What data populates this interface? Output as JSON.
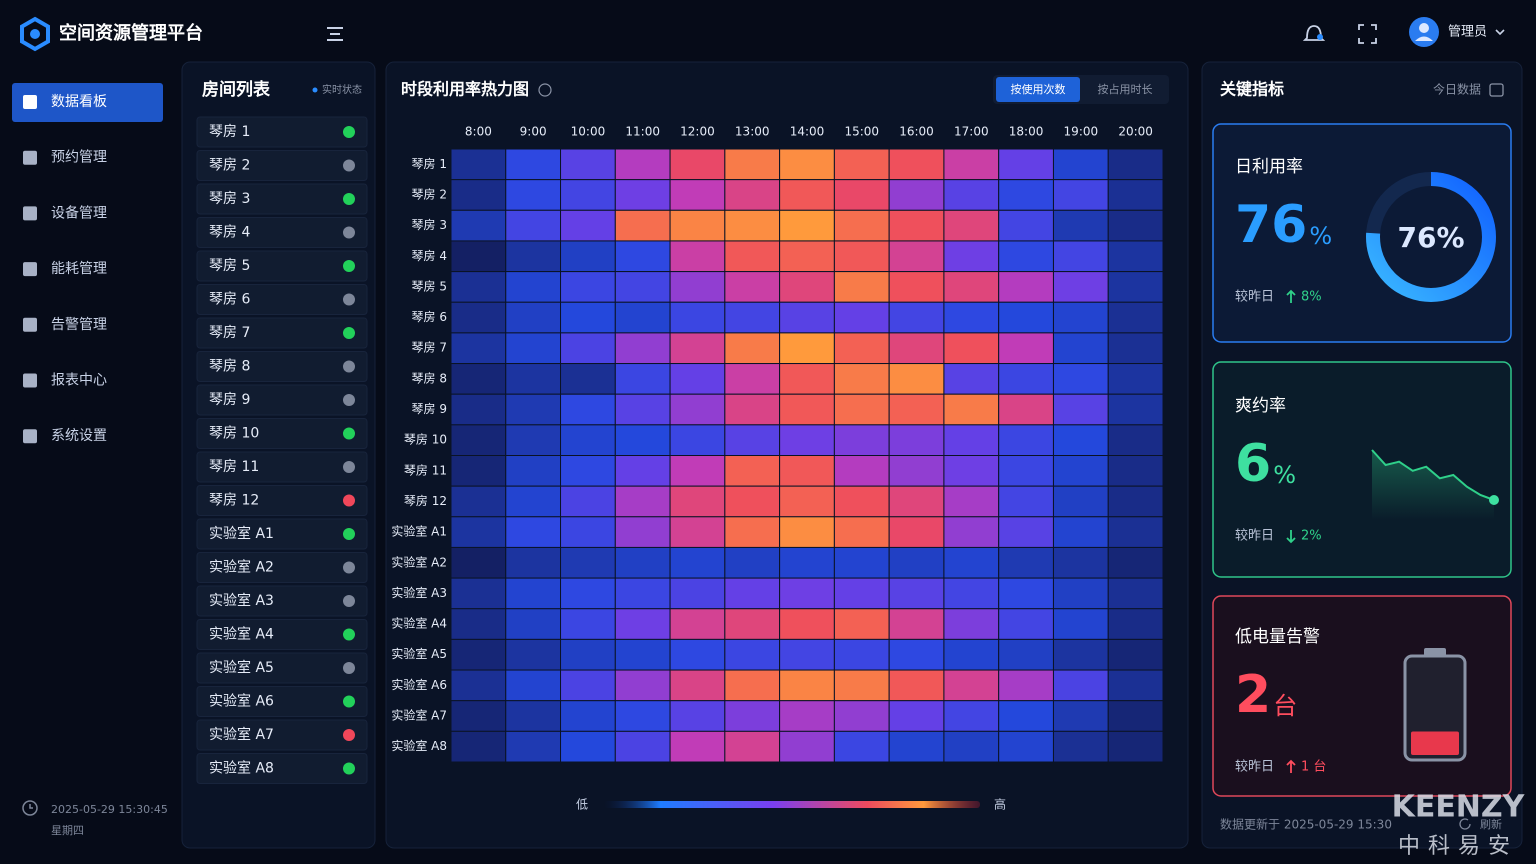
{
  "header": {
    "title": "空间资源管理平台",
    "user": "管理员"
  },
  "nav": {
    "active": 0,
    "items": [
      "数据看板",
      "预约管理",
      "设备管理",
      "能耗管理",
      "告警管理",
      "报表中心",
      "系统设置"
    ]
  },
  "sidebar_footer": {
    "datetime": "2025-05-29 15:30:45",
    "weekday": "星期四"
  },
  "room_list": {
    "title": "房间列表",
    "status_label": "实时状态",
    "status_colors": {
      "online": "#22d15a",
      "offline": "#7d8699",
      "alarm": "#f0475a"
    },
    "rooms": [
      {
        "name": "琴房 1",
        "status": "online"
      },
      {
        "name": "琴房 2",
        "status": "offline"
      },
      {
        "name": "琴房 3",
        "status": "online"
      },
      {
        "name": "琴房 4",
        "status": "offline"
      },
      {
        "name": "琴房 5",
        "status": "online"
      },
      {
        "name": "琴房 6",
        "status": "offline"
      },
      {
        "name": "琴房 7",
        "status": "online"
      },
      {
        "name": "琴房 8",
        "status": "offline"
      },
      {
        "name": "琴房 9",
        "status": "offline"
      },
      {
        "name": "琴房 10",
        "status": "online"
      },
      {
        "name": "琴房 11",
        "status": "offline"
      },
      {
        "name": "琴房 12",
        "status": "alarm"
      },
      {
        "name": "实验室 A1",
        "status": "online"
      },
      {
        "name": "实验室 A2",
        "status": "offline"
      },
      {
        "name": "实验室 A3",
        "status": "offline"
      },
      {
        "name": "实验室 A4",
        "status": "online"
      },
      {
        "name": "实验室 A5",
        "status": "offline"
      },
      {
        "name": "实验室 A6",
        "status": "online"
      },
      {
        "name": "实验室 A7",
        "status": "alarm"
      },
      {
        "name": "实验室 A8",
        "status": "online"
      }
    ]
  },
  "heatmap": {
    "title": "时段利用率热力图",
    "tabs": [
      "按使用次数",
      "按占用时长"
    ],
    "active_tab": 0,
    "columns": [
      "8:00",
      "9:00",
      "10:00",
      "11:00",
      "12:00",
      "13:00",
      "14:00",
      "15:00",
      "16:00",
      "17:00",
      "18:00",
      "19:00",
      "20:00"
    ],
    "rows": [
      "琴房 1",
      "琴房 2",
      "琴房 3",
      "琴房 4",
      "琴房 5",
      "琴房 6",
      "琴房 7",
      "琴房 8",
      "琴房 9",
      "琴房 10",
      "琴房 11",
      "琴房 12",
      "实验室 A1",
      "实验室 A2",
      "实验室 A3",
      "实验室 A4",
      "实验室 A5",
      "实验室 A6",
      "实验室 A7",
      "实验室 A8"
    ],
    "values": [
      [
        20,
        35,
        45,
        60,
        75,
        88,
        92,
        82,
        78,
        65,
        48,
        30,
        18
      ],
      [
        18,
        35,
        40,
        50,
        62,
        70,
        80,
        75,
        55,
        45,
        35,
        40,
        20
      ],
      [
        25,
        40,
        48,
        85,
        90,
        92,
        95,
        85,
        78,
        72,
        40,
        25,
        18
      ],
      [
        12,
        22,
        28,
        35,
        65,
        80,
        82,
        80,
        68,
        50,
        35,
        40,
        22
      ],
      [
        20,
        30,
        38,
        40,
        55,
        65,
        72,
        88,
        78,
        72,
        60,
        50,
        22
      ],
      [
        18,
        28,
        32,
        30,
        38,
        40,
        45,
        48,
        40,
        35,
        32,
        30,
        20
      ],
      [
        22,
        30,
        42,
        55,
        68,
        88,
        95,
        82,
        72,
        78,
        62,
        30,
        20
      ],
      [
        15,
        22,
        20,
        38,
        48,
        65,
        80,
        88,
        92,
        45,
        38,
        35,
        22
      ],
      [
        18,
        25,
        35,
        45,
        55,
        70,
        80,
        85,
        82,
        88,
        70,
        45,
        22
      ],
      [
        15,
        25,
        30,
        32,
        38,
        45,
        50,
        52,
        52,
        48,
        38,
        32,
        18
      ],
      [
        15,
        28,
        35,
        48,
        62,
        82,
        80,
        60,
        55,
        50,
        38,
        30,
        18
      ],
      [
        20,
        30,
        42,
        58,
        72,
        78,
        82,
        78,
        72,
        58,
        40,
        28,
        18
      ],
      [
        22,
        35,
        38,
        55,
        68,
        85,
        92,
        85,
        75,
        55,
        45,
        30,
        20
      ],
      [
        12,
        22,
        25,
        28,
        30,
        28,
        30,
        30,
        28,
        30,
        25,
        22,
        15
      ],
      [
        20,
        30,
        35,
        38,
        42,
        48,
        50,
        48,
        45,
        40,
        35,
        28,
        20
      ],
      [
        18,
        28,
        38,
        50,
        68,
        72,
        78,
        82,
        68,
        52,
        40,
        30,
        18
      ],
      [
        15,
        22,
        28,
        30,
        35,
        38,
        40,
        38,
        35,
        30,
        28,
        22,
        15
      ],
      [
        20,
        30,
        42,
        55,
        70,
        85,
        90,
        88,
        80,
        68,
        58,
        42,
        20
      ],
      [
        15,
        22,
        30,
        35,
        45,
        52,
        58,
        55,
        48,
        40,
        32,
        25,
        15
      ],
      [
        15,
        25,
        32,
        42,
        62,
        68,
        55,
        38,
        30,
        28,
        30,
        20,
        15
      ]
    ],
    "legend": {
      "low": "低",
      "high": "高"
    }
  },
  "kpi": {
    "title": "关键指标",
    "date_label": "今日数据",
    "compare_label": "较昨日",
    "utilization": {
      "label": "日利用率",
      "value": 76,
      "unit": "%",
      "ring_label": "76%",
      "change": "8%",
      "direction": "up"
    },
    "no_show": {
      "label": "爽约率",
      "value": 6,
      "unit": "%",
      "change": "2%",
      "direction": "down",
      "trend": [
        80,
        62,
        66,
        55,
        60,
        46,
        50,
        36,
        26,
        20
      ]
    },
    "low_battery": {
      "label": "低电量告警",
      "value": 2,
      "unit": "台",
      "change": "1 台",
      "direction": "up",
      "level": 25
    }
  },
  "footer": {
    "updated": "数据更新于 2025-05-29 15:30",
    "refresh": "刷新"
  },
  "watermark": {
    "brand": "KEENZY",
    "name": "中科易安"
  }
}
